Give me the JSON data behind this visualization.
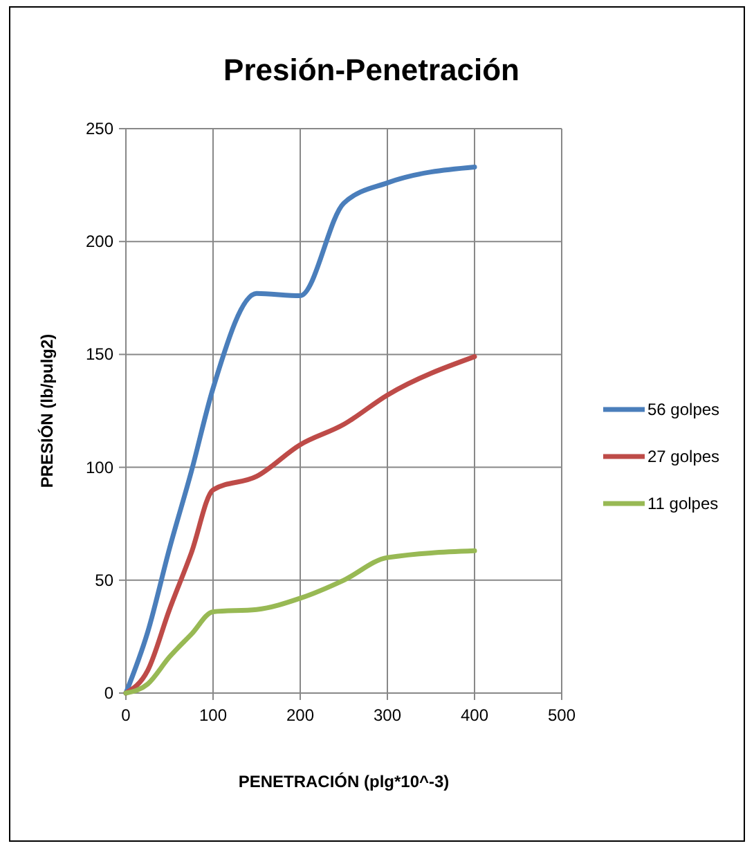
{
  "chart_data": {
    "type": "line",
    "title": "Presión-Penetración",
    "xlabel": "PENETRACIÓN  (plg*10^-3)",
    "ylabel": "PRESIÓN  (lb/pulg2)",
    "x": [
      0,
      25,
      50,
      75,
      100,
      150,
      200,
      250,
      300,
      400
    ],
    "series": [
      {
        "name": "56 golpes",
        "color": "#4a7ebb",
        "values": [
          0,
          27,
          64,
          98,
          135,
          177,
          176,
          217,
          226,
          233
        ]
      },
      {
        "name": "27 golpes",
        "color": "#be4b48",
        "values": [
          0,
          10,
          37,
          62,
          90,
          96,
          110,
          119,
          132,
          149
        ]
      },
      {
        "name": "11 golpes",
        "color": "#98b954",
        "values": [
          0,
          4,
          16,
          26,
          36,
          37,
          42,
          50,
          60,
          63
        ]
      }
    ],
    "xlim": [
      0,
      500
    ],
    "xticks": [
      0,
      100,
      200,
      300,
      400,
      500
    ],
    "ylim": [
      0,
      250
    ],
    "yticks": [
      0,
      50,
      100,
      150,
      200,
      250
    ],
    "grid": true,
    "legend": "right",
    "marker": "none",
    "line_style": "solid"
  }
}
